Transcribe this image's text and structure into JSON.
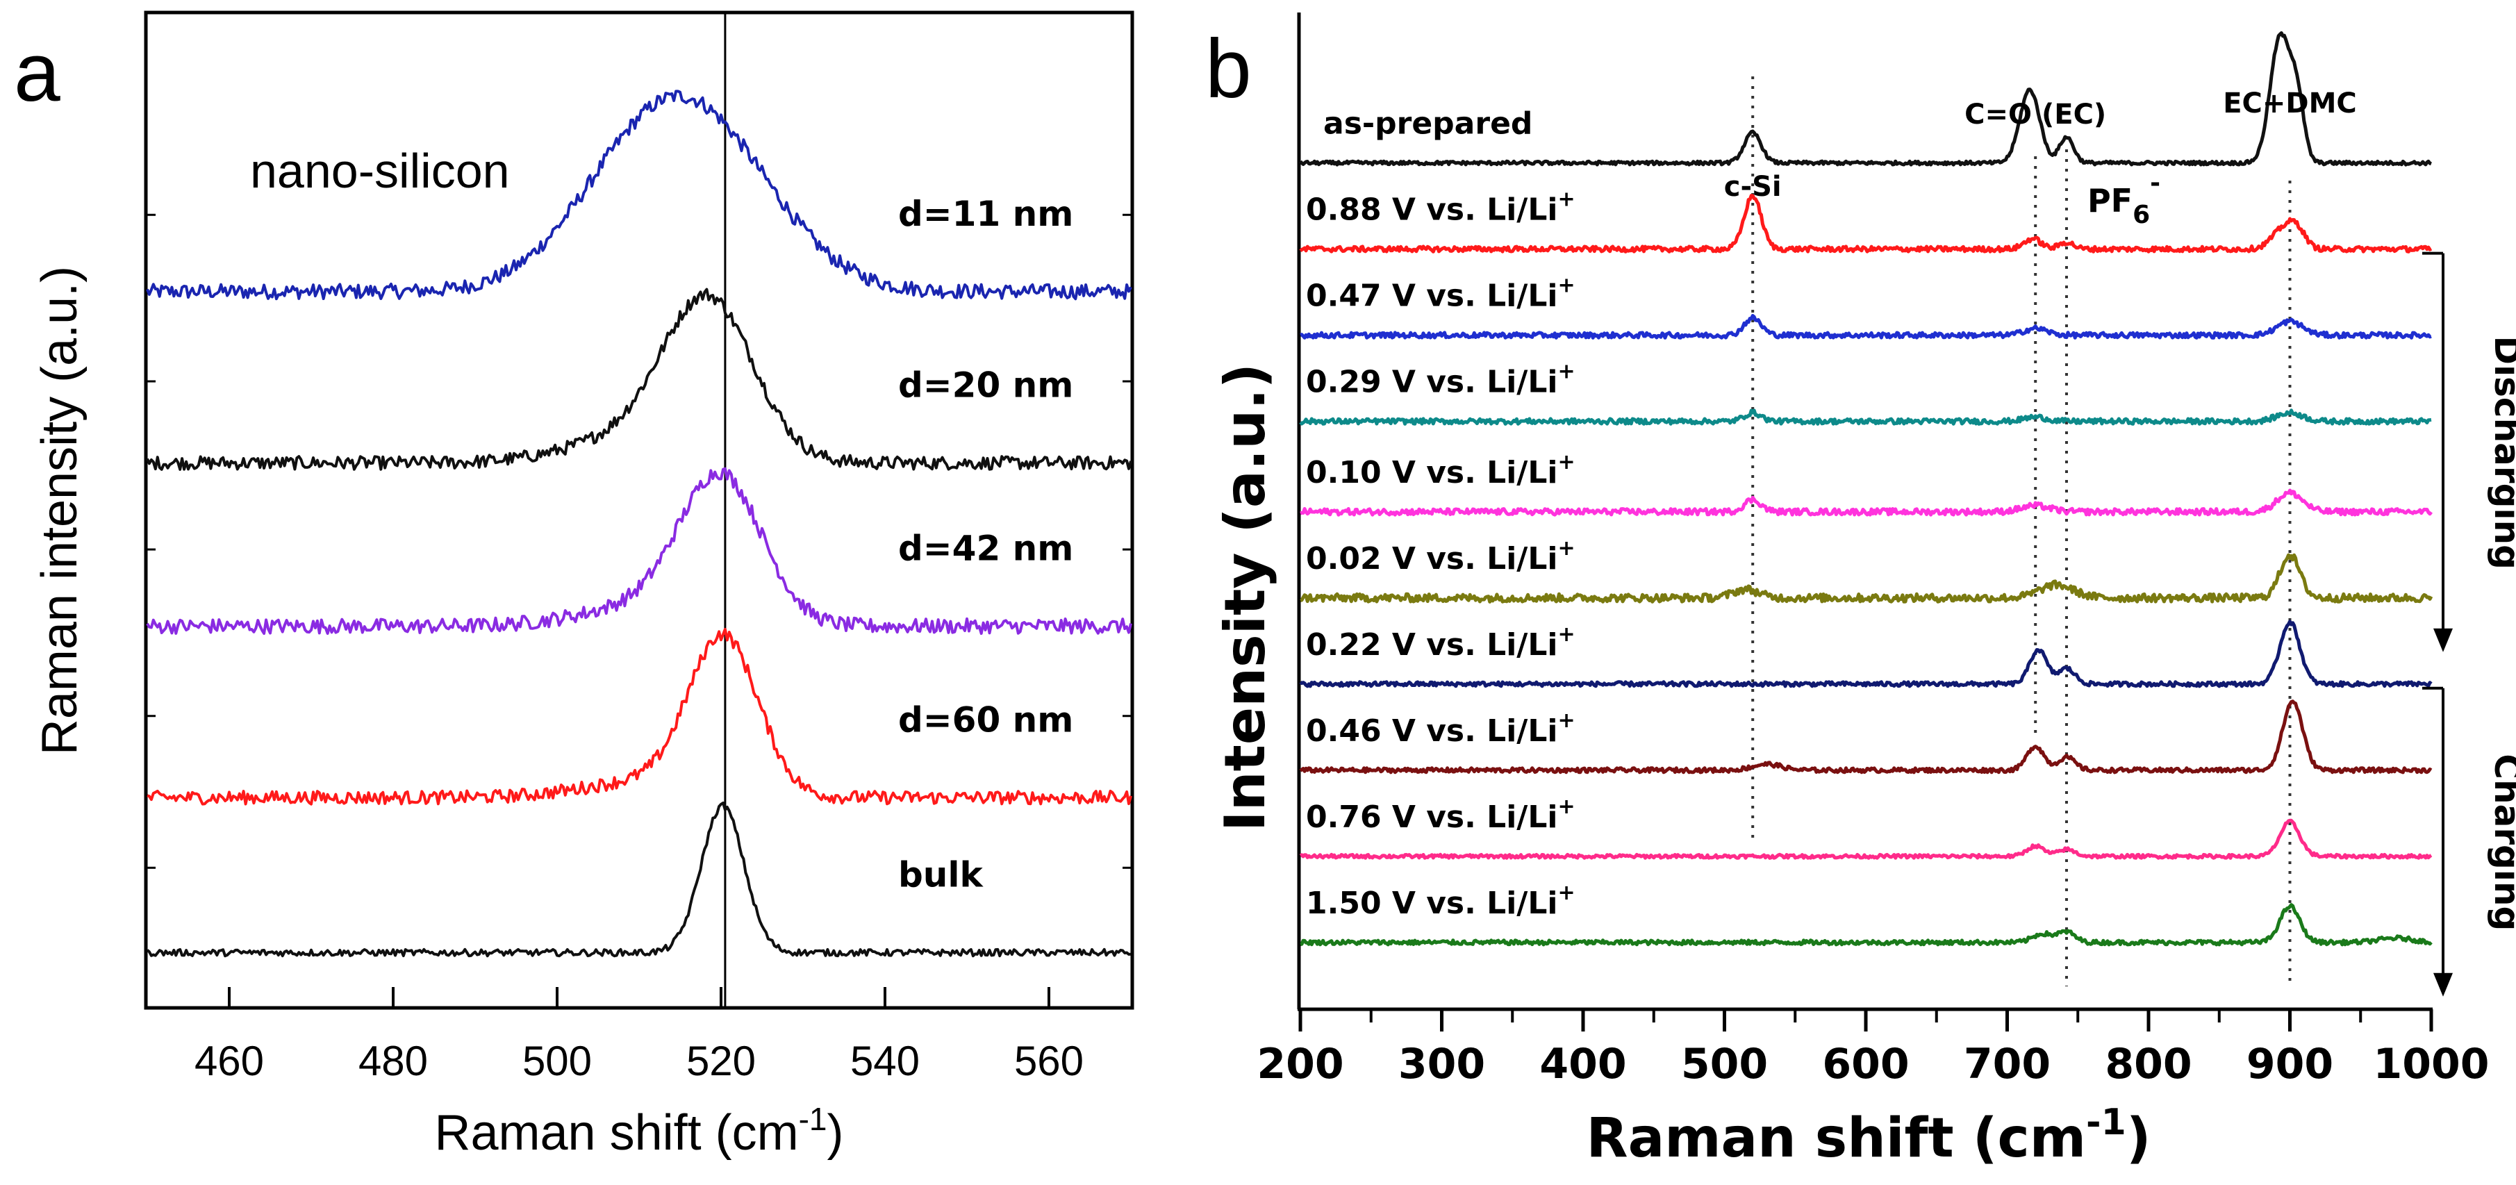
{
  "chart_data": [
    {
      "panel_label": "a",
      "type": "line",
      "annotation": "nano-silicon",
      "xlabel_main": "Raman shift (cm",
      "xlabel_sup": "-1",
      "xlabel_end": ")",
      "ylabel": "Raman intensity (a.u.)",
      "xlim": [
        450,
        570
      ],
      "xticks": [
        "460",
        "480",
        "500",
        "520",
        "540",
        "560"
      ],
      "xtick_values": [
        460,
        480,
        500,
        520,
        540,
        560
      ],
      "reference_line_x": 520.5,
      "offset_scale": [
        0,
        5
      ],
      "series": [
        {
          "label": "d=11 nm",
          "color": "#1a25b0",
          "center": 516.5,
          "width": 9.5,
          "height": 1.05,
          "baseline": 4.15,
          "noise": 0.045,
          "tail": 0.25
        },
        {
          "label": "d=20 nm",
          "color": "#101010",
          "center": 518.5,
          "width": 5.5,
          "height": 0.95,
          "baseline": 3.1,
          "noise": 0.04,
          "tail": 0.15
        },
        {
          "label": "d=42 nm",
          "color": "#8a2be2",
          "center": 520.0,
          "width": 5.0,
          "height": 0.88,
          "baseline": 2.1,
          "noise": 0.045,
          "tail": 0.12
        },
        {
          "label": "d=60 nm",
          "color": "#ff1a1a",
          "center": 520.3,
          "width": 4.2,
          "height": 0.95,
          "baseline": 1.05,
          "noise": 0.04,
          "tail": 0.1
        },
        {
          "label": "bulk",
          "color": "#101010",
          "center": 520.2,
          "width": 2.6,
          "height": 0.9,
          "baseline": 0.1,
          "noise": 0.02,
          "tail": 0
        }
      ]
    },
    {
      "panel_label": "b",
      "type": "line",
      "xlabel_main": "Raman shift (cm",
      "xlabel_sup": "-1",
      "xlabel_end": ")",
      "ylabel": "Intensity (a.u.)",
      "xlim": [
        200,
        1000
      ],
      "xticks": [
        "200",
        "300",
        "400",
        "500",
        "600",
        "700",
        "800",
        "900",
        "1000"
      ],
      "xtick_values": [
        200,
        300,
        400,
        500,
        600,
        700,
        800,
        900,
        1000
      ],
      "offset_scale": [
        0,
        10.4
      ],
      "reference_lines_x": [
        520,
        720,
        742,
        900
      ],
      "peak_labels": [
        {
          "text": "c-Si",
          "x": 520
        },
        {
          "text": "C=O (EC)",
          "x": 720
        },
        {
          "text_main": "PF",
          "text_sub": "6",
          "text_sup": "-",
          "x": 742
        },
        {
          "text": "EC+DMC",
          "x": 900
        }
      ],
      "process_labels": [
        {
          "text": "Discharging",
          "series_range": [
            1,
            5
          ]
        },
        {
          "text": "Charging",
          "series_range": [
            6,
            9
          ]
        }
      ],
      "series": [
        {
          "label": "as-prepared",
          "label_sup": "",
          "color": "#111111",
          "baseline": 9.6,
          "noise": 0.02,
          "peaks": [
            [
              520,
              6,
              0.35
            ],
            [
              716,
              7,
              0.85
            ],
            [
              742,
              5,
              0.3
            ],
            [
              893,
              7,
              1.45
            ],
            [
              905,
              5,
              0.7
            ]
          ]
        },
        {
          "label": "0.88 V vs. Li/Li",
          "label_sup": "+",
          "color": "#ff1a1a",
          "baseline": 8.6,
          "noise": 0.03,
          "peaks": [
            [
              520,
              6,
              0.62
            ],
            [
              718,
              6,
              0.12
            ],
            [
              742,
              5,
              0.08
            ],
            [
              895,
              8,
              0.22
            ],
            [
              905,
              6,
              0.2
            ]
          ]
        },
        {
          "label": "0.47 V vs. Li/Li",
          "label_sup": "+",
          "color": "#1f2fd0",
          "baseline": 7.6,
          "noise": 0.03,
          "peaks": [
            [
              520,
              6,
              0.2
            ],
            [
              720,
              8,
              0.08
            ],
            [
              900,
              9,
              0.16
            ]
          ]
        },
        {
          "label": "0.29 V vs. Li/Li",
          "label_sup": "+",
          "color": "#0d8a8a",
          "baseline": 6.6,
          "noise": 0.03,
          "peaks": [
            [
              520,
              6,
              0.1
            ],
            [
              720,
              8,
              0.05
            ],
            [
              900,
              9,
              0.1
            ]
          ]
        },
        {
          "label": "0.10 V vs. Li/Li",
          "label_sup": "+",
          "color": "#ff33dd",
          "baseline": 5.55,
          "noise": 0.035,
          "peaks": [
            [
              520,
              6,
              0.14
            ],
            [
              720,
              10,
              0.07
            ],
            [
              900,
              9,
              0.22
            ]
          ]
        },
        {
          "label": "0.02 V vs. Li/Li",
          "label_sup": "+",
          "color": "#7a7a10",
          "baseline": 4.55,
          "noise": 0.045,
          "peaks": [
            [
              515,
              9,
              0.1
            ],
            [
              735,
              12,
              0.15
            ],
            [
              900,
              7,
              0.5
            ]
          ]
        },
        {
          "label": "0.22 V vs. Li/Li",
          "label_sup": "+",
          "color": "#101a70",
          "baseline": 3.55,
          "noise": 0.025,
          "peaks": [
            [
              722,
              6,
              0.4
            ],
            [
              742,
              6,
              0.18
            ],
            [
              900,
              7,
              0.72
            ]
          ]
        },
        {
          "label": "0.46 V vs. Li/Li",
          "label_sup": "+",
          "color": "#7a1010",
          "baseline": 2.55,
          "noise": 0.025,
          "peaks": [
            [
              530,
              10,
              0.07
            ],
            [
              720,
              6,
              0.28
            ],
            [
              742,
              6,
              0.15
            ],
            [
              902,
              7,
              0.8
            ]
          ]
        },
        {
          "label": "0.76 V vs. Li/Li",
          "label_sup": "+",
          "color": "#ff2b8a",
          "baseline": 1.55,
          "noise": 0.02,
          "peaks": [
            [
              720,
              6,
              0.12
            ],
            [
              742,
              6,
              0.08
            ],
            [
              900,
              7,
              0.4
            ]
          ]
        },
        {
          "label": "1.50 V vs. Li/Li",
          "label_sup": "+",
          "color": "#1a7a1a",
          "baseline": 0.55,
          "noise": 0.025,
          "peaks": [
            [
              725,
              7,
              0.1
            ],
            [
              742,
              6,
              0.12
            ],
            [
              900,
              7,
              0.42
            ],
            [
              975,
              12,
              0.05
            ]
          ]
        }
      ]
    }
  ]
}
